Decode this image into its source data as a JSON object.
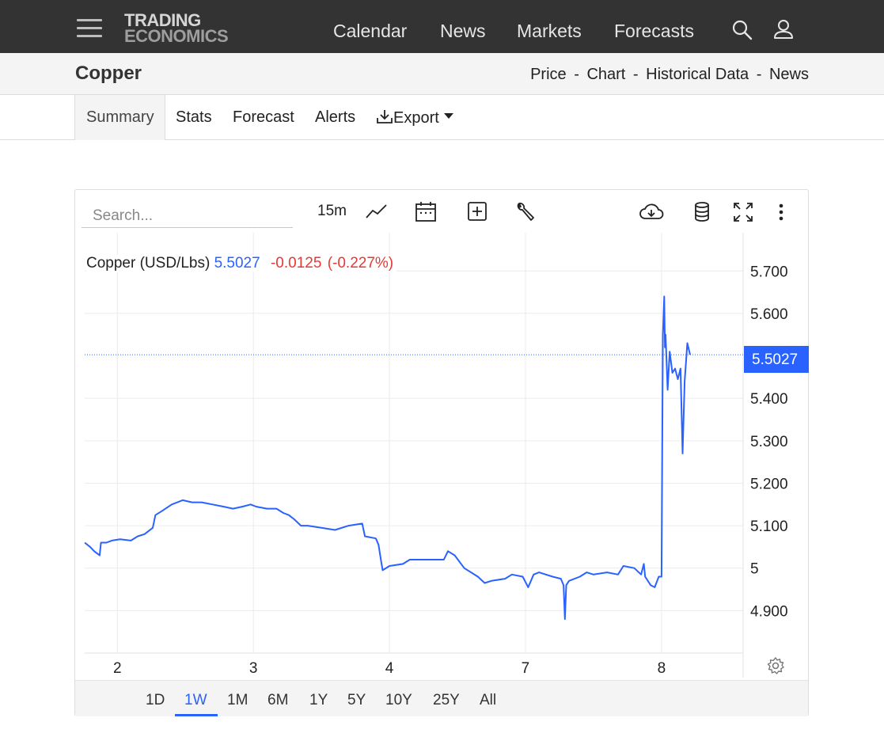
{
  "brand": {
    "line1": "TRADING",
    "line2": "ECONOMICS"
  },
  "nav": {
    "calendar": "Calendar",
    "news": "News",
    "markets": "Markets",
    "forecasts": "Forecasts"
  },
  "title": "Copper",
  "breadcrumbs": {
    "price": "Price",
    "chart": "Chart",
    "historical": "Historical Data",
    "news": "News",
    "separator": "-"
  },
  "tabs": {
    "summary": "Summary",
    "stats": "Stats",
    "forecast": "Forecast",
    "alerts": "Alerts",
    "export": "Export"
  },
  "toolbar": {
    "search_placeholder": "Search...",
    "interval": "15m"
  },
  "legend": {
    "name": "Copper (USD/Lbs)",
    "price": "5.5027",
    "change": "-0.0125",
    "change_pct": "(-0.227%)"
  },
  "ranges": [
    "1D",
    "1W",
    "1M",
    "6M",
    "1Y",
    "5Y",
    "10Y",
    "25Y",
    "All"
  ],
  "active_range": "1W",
  "colors": {
    "accent": "#2962ff",
    "negative": "#e53935",
    "header": "#333333"
  },
  "chart_data": {
    "type": "line",
    "title": "Copper (USD/Lbs)",
    "y_ticks": [
      "5.700",
      "5.600",
      "5.400",
      "5.300",
      "5.200",
      "5.100",
      "5",
      "4.900"
    ],
    "y_tick_values": [
      5.7,
      5.6,
      5.4,
      5.3,
      5.2,
      5.1,
      5.0,
      4.9
    ],
    "ylim": [
      4.8,
      5.79
    ],
    "x_ticks": [
      {
        "label": "2",
        "t": 0.7
      },
      {
        "label": "3",
        "t": 1.7
      },
      {
        "label": "4",
        "t": 2.7
      },
      {
        "label": "7",
        "t": 3.7
      },
      {
        "label": "8",
        "t": 4.7
      }
    ],
    "xlim": [
      0.46,
      5.3
    ],
    "last_price": 5.5027,
    "last_price_label": "5.5027",
    "grid": true,
    "series": [
      {
        "name": "Copper (USD/Lbs)",
        "points": [
          [
            0.46,
            5.06
          ],
          [
            0.5,
            5.05
          ],
          [
            0.53,
            5.04
          ],
          [
            0.57,
            5.03
          ],
          [
            0.58,
            5.06
          ],
          [
            0.62,
            5.06
          ],
          [
            0.66,
            5.065
          ],
          [
            0.72,
            5.068
          ],
          [
            0.8,
            5.065
          ],
          [
            0.85,
            5.075
          ],
          [
            0.9,
            5.08
          ],
          [
            0.96,
            5.095
          ],
          [
            0.98,
            5.125
          ],
          [
            1.03,
            5.135
          ],
          [
            1.1,
            5.15
          ],
          [
            1.18,
            5.16
          ],
          [
            1.25,
            5.155
          ],
          [
            1.32,
            5.155
          ],
          [
            1.4,
            5.15
          ],
          [
            1.48,
            5.145
          ],
          [
            1.55,
            5.14
          ],
          [
            1.62,
            5.145
          ],
          [
            1.68,
            5.15
          ],
          [
            1.72,
            5.145
          ],
          [
            1.8,
            5.14
          ],
          [
            1.87,
            5.14
          ],
          [
            1.92,
            5.13
          ],
          [
            1.96,
            5.125
          ],
          [
            2.0,
            5.115
          ],
          [
            2.05,
            5.1
          ],
          [
            2.1,
            5.1
          ],
          [
            2.2,
            5.095
          ],
          [
            2.3,
            5.09
          ],
          [
            2.4,
            5.1
          ],
          [
            2.5,
            5.105
          ],
          [
            2.52,
            5.075
          ],
          [
            2.6,
            5.07
          ],
          [
            2.62,
            5.055
          ],
          [
            2.64,
            5.015
          ],
          [
            2.65,
            4.995
          ],
          [
            2.7,
            5.005
          ],
          [
            2.8,
            5.01
          ],
          [
            2.85,
            5.02
          ],
          [
            2.95,
            5.02
          ],
          [
            3.05,
            5.02
          ],
          [
            3.1,
            5.02
          ],
          [
            3.13,
            5.04
          ],
          [
            3.18,
            5.03
          ],
          [
            3.25,
            5.0
          ],
          [
            3.35,
            4.98
          ],
          [
            3.4,
            4.965
          ],
          [
            3.45,
            4.97
          ],
          [
            3.55,
            4.975
          ],
          [
            3.6,
            4.985
          ],
          [
            3.68,
            4.98
          ],
          [
            3.72,
            4.955
          ],
          [
            3.76,
            4.985
          ],
          [
            3.8,
            4.99
          ],
          [
            3.9,
            4.98
          ],
          [
            3.96,
            4.975
          ],
          [
            3.98,
            4.96
          ],
          [
            3.99,
            4.88
          ],
          [
            4.0,
            4.96
          ],
          [
            4.02,
            4.97
          ],
          [
            4.1,
            4.98
          ],
          [
            4.15,
            4.99
          ],
          [
            4.2,
            4.985
          ],
          [
            4.3,
            4.99
          ],
          [
            4.38,
            4.985
          ],
          [
            4.42,
            5.005
          ],
          [
            4.5,
            5.0
          ],
          [
            4.55,
            4.985
          ],
          [
            4.57,
            5.01
          ],
          [
            4.58,
            4.98
          ],
          [
            4.62,
            4.96
          ],
          [
            4.65,
            4.955
          ],
          [
            4.68,
            4.98
          ],
          [
            4.7,
            4.98
          ],
          [
            4.71,
            5.55
          ],
          [
            4.72,
            5.64
          ],
          [
            4.725,
            5.52
          ],
          [
            4.73,
            5.55
          ],
          [
            4.745,
            5.42
          ],
          [
            4.76,
            5.51
          ],
          [
            4.78,
            5.46
          ],
          [
            4.8,
            5.47
          ],
          [
            4.82,
            5.445
          ],
          [
            4.84,
            5.47
          ],
          [
            4.855,
            5.27
          ],
          [
            4.87,
            5.44
          ],
          [
            4.89,
            5.53
          ],
          [
            4.91,
            5.5027
          ]
        ]
      }
    ]
  }
}
